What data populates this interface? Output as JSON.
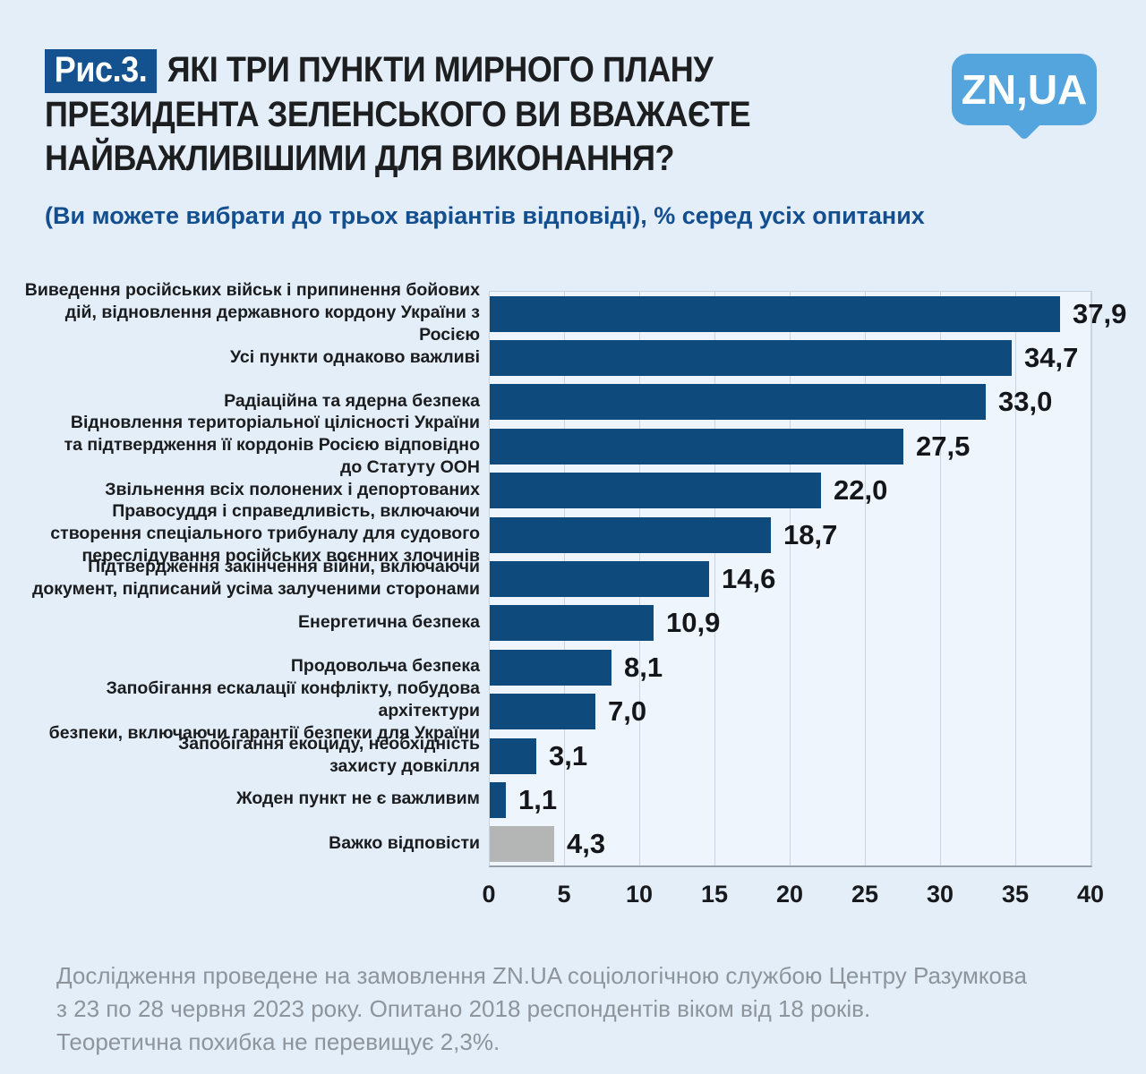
{
  "header": {
    "figure_tag": "Рис.3.",
    "title_lines": [
      "ЯКІ ТРИ ПУНКТИ МИРНОГО ПЛАНУ",
      "ПРЕЗИДЕНТА ЗЕЛЕНСЬКОГО ВИ ВВАЖАЄТЕ",
      "НАЙВАЖЛИВІШИМИ ДЛЯ ВИКОНАННЯ?"
    ],
    "subtitle": "(Ви можете вибрати до трьох варіантів відповіді), % серед усіх опитаних",
    "logo_text": "ZN,UA"
  },
  "chart_data": {
    "type": "bar",
    "orientation": "horizontal",
    "title": "Які три пункти мирного плану президента Зеленського ви вважаєте найважливішими для виконання?",
    "xlabel": "% серед усіх опитаних",
    "xlim": [
      0,
      40
    ],
    "x_ticks": [
      0,
      5,
      10,
      15,
      20,
      25,
      30,
      35,
      40
    ],
    "grid": true,
    "categories": [
      "Виведення російських військ і припинення бойових\nдій, відновлення державного кордону України з Росією",
      "Усі пункти однаково важливі",
      "Радіаційна та ядерна безпека",
      "Відновлення територіальної цілісності України\nта підтвердження її кордонів Росією відповідно\nдо Статуту ООН",
      "Звільнення всіх полонених і депортованих",
      "Правосуддя і справедливість, включаючи\nстворення спеціального трибуналу для судового\nпереслідування російських воєнних злочинів",
      "Підтвердження закінчення війни, включаючи\nдокумент, підписаний усіма залученими сторонами",
      "Енергетична безпека",
      "Продовольча безпека",
      "Запобігання ескалації конфлікту, побудова архітектури\nбезпеки, включаючи гарантії безпеки для України",
      "Запобігання екоциду, необхідність\nзахисту довкілля",
      "Жоден пункт не є важливим",
      "Важко відповісти"
    ],
    "values": [
      37.9,
      34.7,
      33.0,
      27.5,
      22.0,
      18.7,
      14.6,
      10.9,
      8.1,
      7.0,
      3.1,
      1.1,
      4.3
    ],
    "value_labels": [
      "37,9",
      "34,7",
      "33,0",
      "27,5",
      "22,0",
      "18,7",
      "14,6",
      "10,9",
      "8,1",
      "7,0",
      "3,1",
      "1,1",
      "4,3"
    ],
    "bar_color": "#0e4a7c",
    "neutral_bar_color": "#b4b6b6",
    "neutral_bar_index": 12
  },
  "footer": {
    "note": "Дослідження проведене на замовлення ZN.UA соціологічною службою Центру Разумкова\nз 23 по 28 червня 2023 року. Опитано 2018 респондентів віком від 18 років.\nТеоретична похибка не перевищує 2,3%."
  },
  "colors": {
    "page_background": "#e3eef9",
    "plot_background": "#eef5fc",
    "gridline": "#c9d4e0",
    "axis_line": "#94a0ac",
    "bar_navy": "#0e4a7c",
    "bar_gray": "#b4b6b6",
    "badge_blue": "#14518f",
    "subtitle_blue": "#134e8e",
    "logo_blue": "#54a5de",
    "footer_gray": "#8d949c",
    "text_dark": "#1d1e20"
  }
}
